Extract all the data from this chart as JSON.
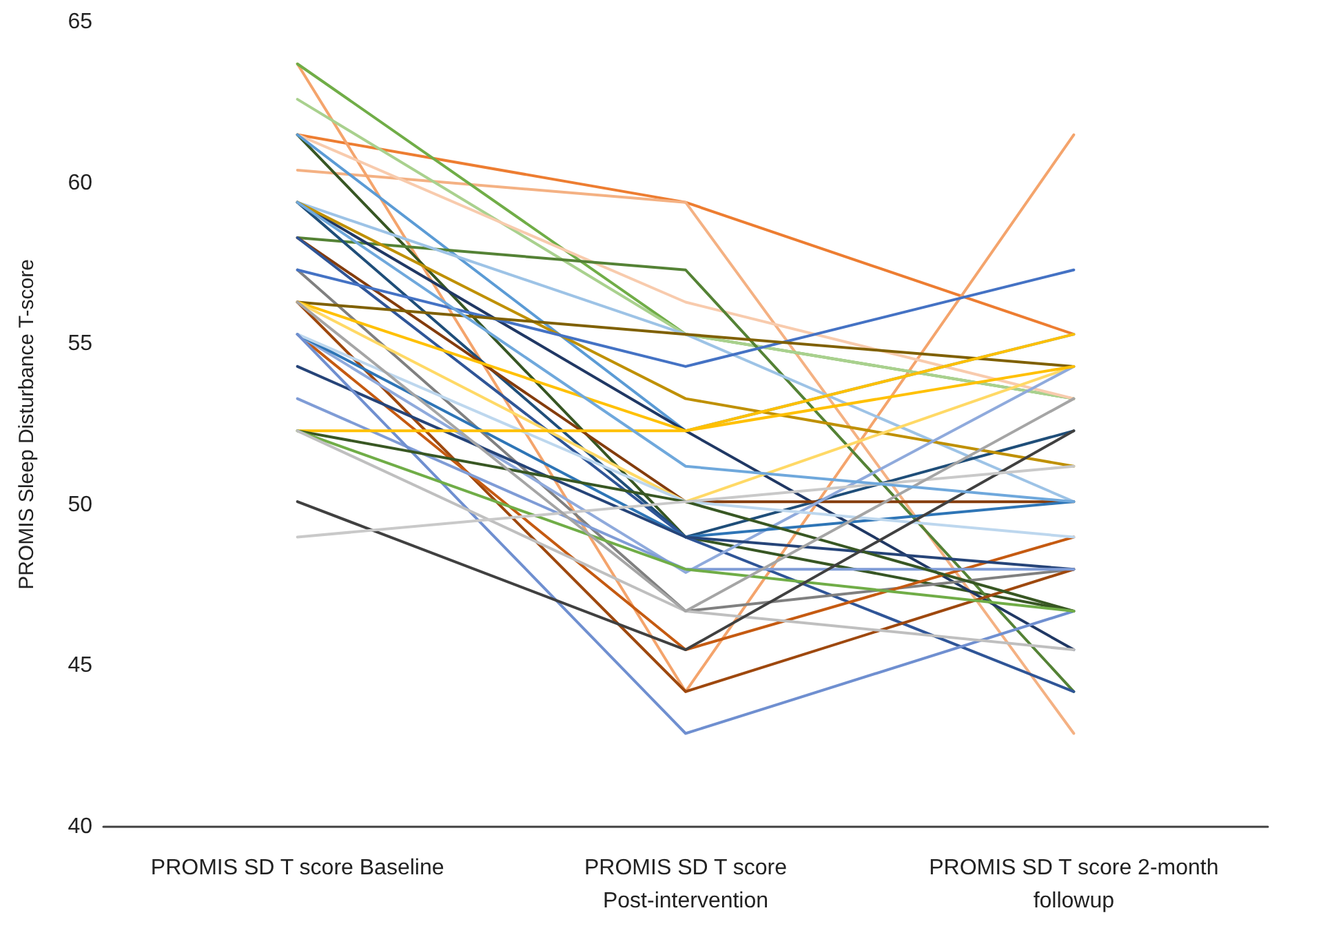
{
  "chart_data": {
    "type": "line",
    "ylabel": "PROMIS Sleep Disturbance T-score",
    "categories": [
      "PROMIS SD T score Baseline",
      "PROMIS SD T score Post-intervention",
      "PROMIS SD T score 2-month followup"
    ],
    "ylim": [
      40,
      65
    ],
    "yticks": [
      40,
      45,
      50,
      55,
      60,
      65
    ],
    "grid": false,
    "marker": "none",
    "line_style": "solid",
    "series": [
      {
        "color": "#ed7d31",
        "values": [
          61.5,
          59.4,
          55.3
        ]
      },
      {
        "color": "#f4b183",
        "values": [
          60.4,
          59.4,
          42.9
        ]
      },
      {
        "color": "#f4a46c",
        "values": [
          63.7,
          44.2,
          61.5
        ]
      },
      {
        "color": "#70ad47",
        "values": [
          63.7,
          55.3,
          53.3
        ]
      },
      {
        "color": "#a9d18e",
        "values": [
          62.6,
          55.3,
          53.3
        ]
      },
      {
        "color": "#f8cbad",
        "values": [
          61.5,
          56.3,
          53.3
        ]
      },
      {
        "color": "#375623",
        "values": [
          61.5,
          49.0,
          46.7
        ]
      },
      {
        "color": "#5b9bd5",
        "values": [
          61.5,
          52.3,
          55.3
        ]
      },
      {
        "color": "#548235",
        "values": [
          58.3,
          57.3,
          44.2
        ]
      },
      {
        "color": "#9dc3e6",
        "values": [
          59.4,
          55.3,
          50.1
        ]
      },
      {
        "color": "#1f4e79",
        "values": [
          59.4,
          49.0,
          52.3
        ]
      },
      {
        "color": "#203864",
        "values": [
          59.4,
          52.3,
          45.5
        ]
      },
      {
        "color": "#bf9000",
        "values": [
          59.4,
          53.3,
          51.2
        ]
      },
      {
        "color": "#843c0c",
        "values": [
          58.3,
          50.1,
          50.1
        ]
      },
      {
        "color": "#2f5597",
        "values": [
          58.3,
          49.0,
          44.2
        ]
      },
      {
        "color": "#808080",
        "values": [
          57.3,
          46.7,
          48.0
        ]
      },
      {
        "color": "#4472c4",
        "values": [
          57.3,
          54.3,
          57.3
        ]
      },
      {
        "color": "#7f6000",
        "values": [
          56.3,
          55.3,
          54.3
        ]
      },
      {
        "color": "#ffc000",
        "values": [
          56.3,
          52.3,
          55.3
        ]
      },
      {
        "color": "#ffd966",
        "values": [
          56.3,
          50.1,
          54.3
        ]
      },
      {
        "color": "#9e480e",
        "values": [
          56.3,
          44.2,
          48.0
        ]
      },
      {
        "color": "#c55a11",
        "values": [
          55.3,
          45.5,
          49.0
        ]
      },
      {
        "color": "#8faadc",
        "values": [
          55.3,
          47.9,
          54.3
        ]
      },
      {
        "color": "#2e75b6",
        "values": [
          55.3,
          49.0,
          50.1
        ]
      },
      {
        "color": "#bdd7ee",
        "values": [
          55.3,
          50.1,
          49.0
        ]
      },
      {
        "color": "#264478",
        "values": [
          54.3,
          49.0,
          48.0
        ]
      },
      {
        "color": "#7f9cd6",
        "values": [
          53.3,
          48.0,
          48.0
        ]
      },
      {
        "color": "#6f8fd0",
        "values": [
          55.3,
          42.9,
          46.7
        ]
      },
      {
        "color": "#ffc000",
        "values": [
          52.3,
          52.3,
          54.3
        ]
      },
      {
        "color": "#385723",
        "values": [
          52.3,
          50.1,
          46.7
        ]
      },
      {
        "color": "#70ad47",
        "values": [
          52.3,
          48.0,
          46.7
        ]
      },
      {
        "color": "#bfbfbf",
        "values": [
          52.3,
          46.7,
          45.5
        ]
      },
      {
        "color": "#404040",
        "values": [
          50.1,
          45.5,
          52.3
        ]
      },
      {
        "color": "#c9c9c9",
        "values": [
          49.0,
          50.1,
          51.2
        ]
      },
      {
        "color": "#a5a5a5",
        "values": [
          56.3,
          46.7,
          53.3
        ]
      },
      {
        "color": "#6fa8dc",
        "values": [
          59.4,
          51.2,
          50.1
        ]
      }
    ]
  }
}
